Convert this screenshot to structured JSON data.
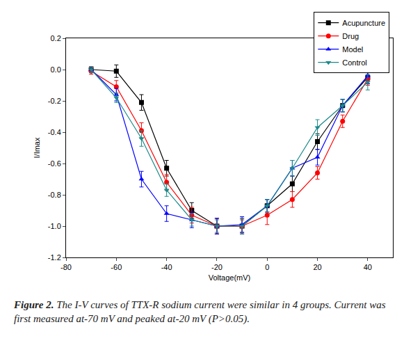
{
  "chart_data": {
    "type": "line",
    "x_label": "Voltage(mV)",
    "y_label": "I/Imax",
    "caption": {
      "label": "Figure 2.",
      "text": "The I-V curves of TTX-R sodium current were similar in 4 groups. Current was first measured at-70 mV and peaked at-20 mV (P>0.05)."
    },
    "x": [
      -70,
      -60,
      -50,
      -40,
      -30,
      -20,
      -10,
      0,
      10,
      20,
      30,
      40
    ],
    "series": [
      {
        "name": "Acupuncture",
        "color": "#000000",
        "marker": "square",
        "values": [
          0.0,
          -0.01,
          -0.21,
          -0.63,
          -0.9,
          -1.0,
          -1.0,
          -0.87,
          -0.73,
          -0.46,
          -0.23,
          -0.05
        ],
        "errors": [
          0.02,
          0.04,
          0.05,
          0.05,
          0.05,
          0.05,
          0.05,
          0.04,
          0.05,
          0.05,
          0.04,
          0.04
        ]
      },
      {
        "name": "Drug",
        "color": "#ff0000",
        "marker": "circle",
        "values": [
          -0.01,
          -0.11,
          -0.39,
          -0.72,
          -0.93,
          -1.0,
          -1.0,
          -0.93,
          -0.83,
          -0.66,
          -0.33,
          -0.06
        ],
        "errors": [
          0.02,
          0.04,
          0.05,
          0.05,
          0.05,
          0.05,
          0.04,
          0.06,
          0.05,
          0.04,
          0.04,
          0.04
        ]
      },
      {
        "name": "Model",
        "color": "#0000ff",
        "marker": "triangle-up",
        "values": [
          0.0,
          -0.16,
          -0.7,
          -0.92,
          -0.96,
          -1.0,
          -0.99,
          -0.87,
          -0.63,
          -0.56,
          -0.23,
          -0.04
        ],
        "errors": [
          0.02,
          0.04,
          0.05,
          0.05,
          0.05,
          0.05,
          0.05,
          0.04,
          0.05,
          0.05,
          0.04,
          0.05
        ]
      },
      {
        "name": "Control",
        "color": "#1a8a8a",
        "marker": "triangle-down",
        "values": [
          0.0,
          -0.18,
          -0.44,
          -0.77,
          -0.96,
          -1.0,
          -1.0,
          -0.87,
          -0.63,
          -0.37,
          -0.23,
          -0.08
        ],
        "errors": [
          0.02,
          0.03,
          0.05,
          0.04,
          0.04,
          0.04,
          0.05,
          0.04,
          0.05,
          0.05,
          0.04,
          0.05
        ]
      }
    ],
    "xlim": [
      -80,
      50
    ],
    "xticks": [
      -80,
      -60,
      -40,
      -20,
      0,
      20,
      40
    ],
    "ylim": [
      -1.2,
      0.2
    ],
    "yticks": [
      -1.2,
      {
        "value": -1,
        "label": "-1.0"
      },
      -0.8,
      -0.6,
      -0.4,
      -0.2,
      {
        "value": 0,
        "label": "0.0"
      },
      0.2
    ],
    "grid": false,
    "legend": "upper right"
  }
}
